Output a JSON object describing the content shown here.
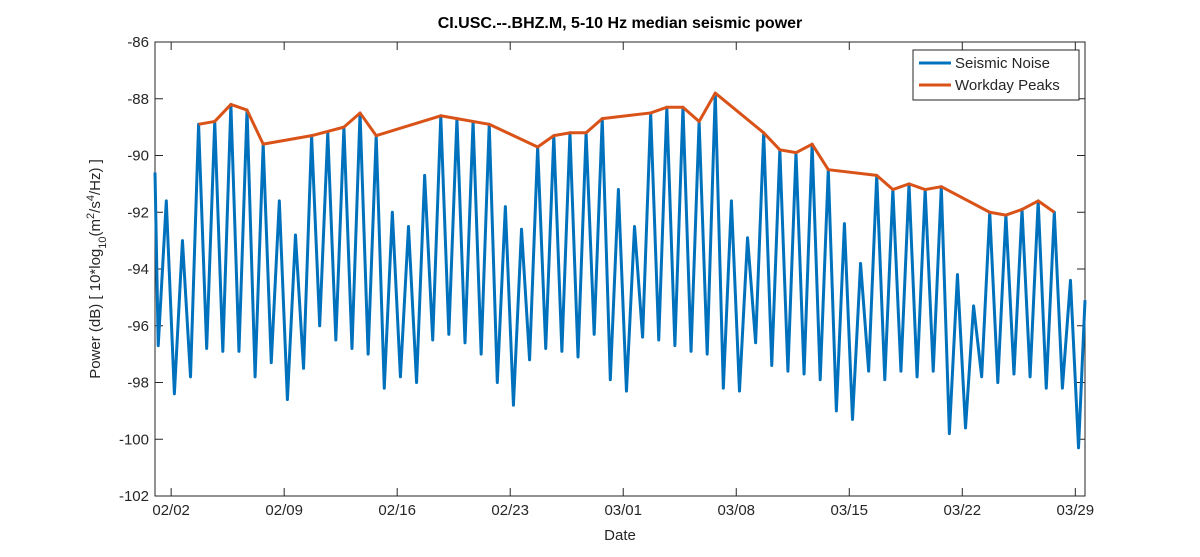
{
  "chart_data": {
    "type": "line",
    "title": "CI.USC.--.BHZ.M, 5-10 Hz median seismic power",
    "x_label": "Date",
    "y_label_parts": [
      {
        "text": "Power   (dB)   [ 10*log"
      },
      {
        "text": "10",
        "shift": "sub"
      },
      {
        "text": "(m"
      },
      {
        "text": "2",
        "shift": "super"
      },
      {
        "text": "/s"
      },
      {
        "text": "4",
        "shift": "super"
      },
      {
        "text": "/Hz) ]"
      }
    ],
    "xlim": [
      0,
      57.6
    ],
    "xticks": [
      {
        "value": 1,
        "label": "02/02"
      },
      {
        "value": 8,
        "label": "02/09"
      },
      {
        "value": 15,
        "label": "02/16"
      },
      {
        "value": 22,
        "label": "02/23"
      },
      {
        "value": 29,
        "label": "03/01"
      },
      {
        "value": 36,
        "label": "03/08"
      },
      {
        "value": 43,
        "label": "03/15"
      },
      {
        "value": 50,
        "label": "03/22"
      },
      {
        "value": 57,
        "label": "03/29"
      }
    ],
    "ylim": [
      -102,
      -86
    ],
    "yticks": [
      -102,
      -100,
      -98,
      -96,
      -94,
      -92,
      -90,
      -88,
      -86
    ],
    "grid": false,
    "legend": "northeast",
    "series": [
      {
        "name": "Seismic Noise",
        "color": "#0072bd",
        "x": [
          0,
          0.2,
          0.7,
          1.2,
          1.7,
          2.2,
          2.7,
          3.2,
          3.7,
          4.2,
          4.7,
          5.2,
          5.7,
          6.2,
          6.7,
          7.2,
          7.7,
          8.2,
          8.7,
          9.2,
          9.7,
          10.2,
          10.7,
          11.2,
          11.7,
          12.2,
          12.7,
          13.2,
          13.7,
          14.2,
          14.7,
          15.2,
          15.7,
          16.2,
          16.7,
          17.2,
          17.7,
          18.2,
          18.7,
          19.2,
          19.7,
          20.2,
          20.7,
          21.2,
          21.7,
          22.2,
          22.7,
          23.2,
          23.7,
          24.2,
          24.7,
          25.2,
          25.7,
          26.2,
          26.7,
          27.2,
          27.7,
          28.2,
          28.7,
          29.2,
          29.7,
          30.2,
          30.7,
          31.2,
          31.7,
          32.2,
          32.7,
          33.2,
          33.7,
          34.2,
          34.7,
          35.2,
          35.7,
          36.2,
          36.7,
          37.2,
          37.7,
          38.2,
          38.7,
          39.2,
          39.7,
          40.2,
          40.7,
          41.2,
          41.7,
          42.2,
          42.7,
          43.2,
          43.7,
          44.2,
          44.7,
          45.2,
          45.7,
          46.2,
          46.7,
          47.2,
          47.7,
          48.2,
          48.7,
          49.2,
          49.7,
          50.2,
          50.7,
          51.2,
          51.7,
          52.2,
          52.7,
          53.2,
          53.7,
          54.2,
          54.7,
          55.2,
          55.7,
          56.2,
          56.7,
          57.2,
          57.6
        ],
        "values": [
          -90.6,
          -96.7,
          -91.6,
          -98.4,
          -93.0,
          -97.8,
          -88.9,
          -96.8,
          -88.8,
          -96.9,
          -88.2,
          -96.9,
          -88.4,
          -97.8,
          -89.6,
          -97.3,
          -91.6,
          -98.6,
          -92.8,
          -97.5,
          -89.3,
          -96.0,
          -89.2,
          -96.5,
          -89.0,
          -96.8,
          -88.5,
          -97.0,
          -89.3,
          -98.2,
          -92.0,
          -97.8,
          -92.5,
          -98.0,
          -90.7,
          -96.5,
          -88.6,
          -96.3,
          -88.7,
          -96.6,
          -88.8,
          -97.0,
          -88.9,
          -98.0,
          -91.8,
          -98.8,
          -92.6,
          -97.2,
          -89.7,
          -96.8,
          -89.3,
          -96.9,
          -89.2,
          -97.1,
          -89.2,
          -96.3,
          -88.7,
          -97.9,
          -91.2,
          -98.3,
          -92.5,
          -96.4,
          -88.5,
          -96.5,
          -88.3,
          -96.7,
          -88.3,
          -96.9,
          -88.8,
          -97.0,
          -87.8,
          -98.2,
          -91.6,
          -98.3,
          -92.9,
          -96.6,
          -89.2,
          -97.4,
          -89.8,
          -97.6,
          -89.9,
          -97.7,
          -89.6,
          -97.9,
          -90.5,
          -99.0,
          -92.4,
          -99.3,
          -93.8,
          -97.6,
          -90.7,
          -97.9,
          -91.2,
          -97.6,
          -91.0,
          -97.8,
          -91.2,
          -97.6,
          -91.1,
          -99.8,
          -94.2,
          -99.6,
          -95.3,
          -97.8,
          -92.0,
          -98.0,
          -92.1,
          -97.7,
          -91.9,
          -97.8,
          -91.6,
          -98.2,
          -92.0,
          -98.2,
          -94.4,
          -100.3,
          -95.1
        ]
      },
      {
        "name": "Workday Peaks",
        "color": "#d95319",
        "x": [
          2.7,
          3.7,
          4.7,
          5.7,
          6.7,
          9.7,
          11.7,
          12.7,
          13.7,
          17.7,
          18.7,
          20.7,
          23.7,
          24.7,
          25.7,
          26.7,
          27.7,
          30.7,
          31.7,
          32.7,
          33.7,
          34.7,
          37.7,
          38.7,
          39.7,
          40.7,
          41.7,
          44.7,
          45.7,
          46.7,
          47.7,
          48.7,
          51.7,
          52.7,
          53.7,
          54.7,
          55.7
        ],
        "values": [
          -88.9,
          -88.8,
          -88.2,
          -88.4,
          -89.6,
          -89.3,
          -89.0,
          -88.5,
          -89.3,
          -88.6,
          -88.7,
          -88.9,
          -89.7,
          -89.3,
          -89.2,
          -89.2,
          -88.7,
          -88.5,
          -88.3,
          -88.3,
          -88.8,
          -87.8,
          -89.2,
          -89.8,
          -89.9,
          -89.6,
          -90.5,
          -90.7,
          -91.2,
          -91.0,
          -91.2,
          -91.1,
          -92.0,
          -92.1,
          -91.9,
          -91.6,
          -92.0
        ]
      }
    ]
  }
}
